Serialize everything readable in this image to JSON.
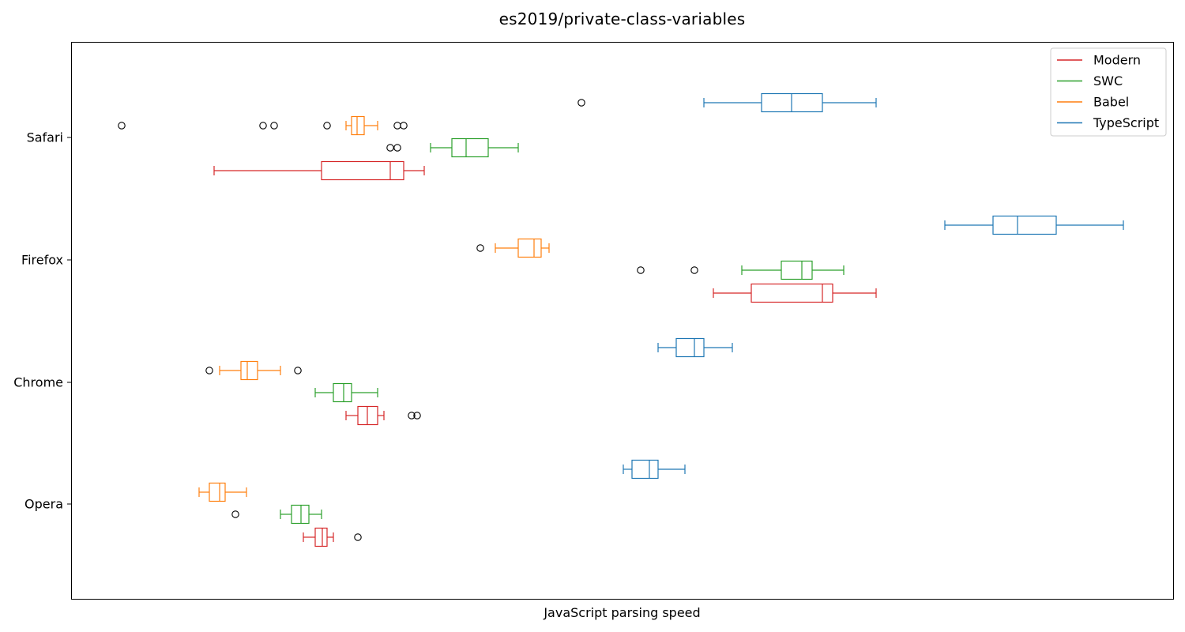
{
  "chart_data": {
    "type": "boxplot-horizontal",
    "title": "es2019/private-class-variables",
    "xlabel": "JavaScript parsing speed",
    "ylabel": "",
    "x_ticks_shown": false,
    "xlim": [
      0,
      1395
    ],
    "categories": [
      "Safari",
      "Firefox",
      "Chrome",
      "Opera"
    ],
    "legend": {
      "position": "top-right",
      "entries": [
        "Modern",
        "SWC",
        "Babel",
        "TypeScript"
      ]
    },
    "series_order_within_group": [
      "TypeScript",
      "Babel",
      "SWC",
      "Modern"
    ],
    "series": [
      {
        "name": "Modern",
        "color": "#d62728",
        "boxes": {
          "Safari": {
            "whisker_low": 181,
            "q1": 317,
            "median": 404,
            "q3": 421,
            "whisker_high": 447,
            "outliers": []
          },
          "Firefox": {
            "whisker_low": 813,
            "q1": 861,
            "median": 951,
            "q3": 964,
            "whisker_high": 1019,
            "outliers": []
          },
          "Chrome": {
            "whisker_low": 348,
            "q1": 363,
            "median": 375,
            "q3": 388,
            "whisker_high": 396,
            "outliers": [
              431,
              438
            ]
          },
          "Opera": {
            "whisker_low": 294,
            "q1": 309,
            "median": 318,
            "q3": 324,
            "whisker_high": 332,
            "outliers": [
              363
            ]
          }
        }
      },
      {
        "name": "SWC",
        "color": "#2ca02c",
        "boxes": {
          "Safari": {
            "whisker_low": 455,
            "q1": 482,
            "median": 500,
            "q3": 528,
            "whisker_high": 566,
            "outliers": [
              404,
              413
            ]
          },
          "Firefox": {
            "whisker_low": 849,
            "q1": 899,
            "median": 925,
            "q3": 938,
            "whisker_high": 978,
            "outliers": [
              721,
              789
            ]
          },
          "Chrome": {
            "whisker_low": 309,
            "q1": 332,
            "median": 345,
            "q3": 355,
            "whisker_high": 388,
            "outliers": []
          },
          "Opera": {
            "whisker_low": 265,
            "q1": 279,
            "median": 291,
            "q3": 301,
            "whisker_high": 317,
            "outliers": [
              208
            ]
          }
        }
      },
      {
        "name": "Babel",
        "color": "#ff7f0e",
        "boxes": {
          "Safari": {
            "whisker_low": 348,
            "q1": 355,
            "median": 362,
            "q3": 371,
            "whisker_high": 388,
            "outliers": [
              64,
              243,
              257,
              324,
              413,
              421
            ]
          },
          "Firefox": {
            "whisker_low": 537,
            "q1": 566,
            "median": 586,
            "q3": 595,
            "whisker_high": 605,
            "outliers": [
              518
            ]
          },
          "Chrome": {
            "whisker_low": 188,
            "q1": 215,
            "median": 223,
            "q3": 236,
            "whisker_high": 265,
            "outliers": [
              175,
              287
            ]
          },
          "Opera": {
            "whisker_low": 162,
            "q1": 175,
            "median": 188,
            "q3": 195,
            "whisker_high": 222,
            "outliers": []
          }
        }
      },
      {
        "name": "TypeScript",
        "color": "#1f77b4",
        "boxes": {
          "Safari": {
            "whisker_low": 801,
            "q1": 874,
            "median": 912,
            "q3": 951,
            "whisker_high": 1019,
            "outliers": [
              646
            ]
          },
          "Firefox": {
            "whisker_low": 1106,
            "q1": 1167,
            "median": 1198,
            "q3": 1247,
            "whisker_high": 1332,
            "outliers": []
          },
          "Chrome": {
            "whisker_low": 743,
            "q1": 766,
            "median": 789,
            "q3": 801,
            "whisker_high": 837,
            "outliers": []
          },
          "Opera": {
            "whisker_low": 699,
            "q1": 710,
            "median": 732,
            "q3": 743,
            "whisker_high": 777,
            "outliers": []
          }
        }
      }
    ]
  }
}
